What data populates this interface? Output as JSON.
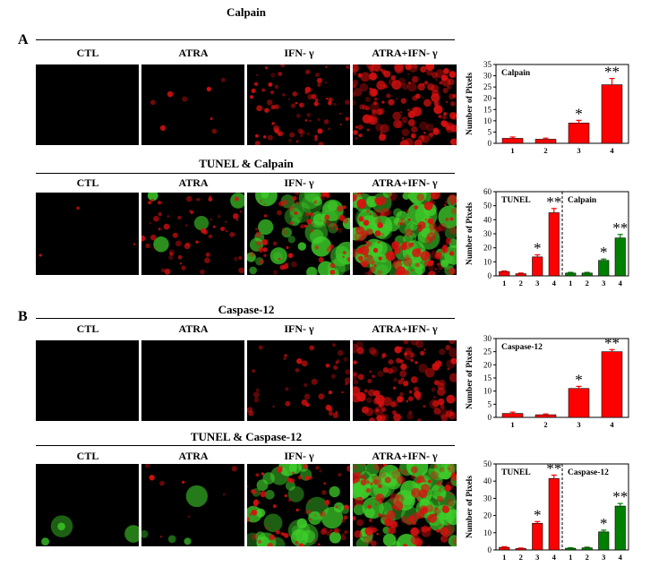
{
  "panels": [
    {
      "letter": "A",
      "row1_title": "Calpain",
      "row2_title": "TUNEL & Calpain",
      "columns": [
        "CTL",
        "ATRA",
        "IFN- γ",
        "ATRA+IFN- γ"
      ]
    },
    {
      "letter": "B",
      "row1_title": "Caspase-12",
      "row2_title": "TUNEL & Caspase-12",
      "columns": [
        "CTL",
        "ATRA",
        "IFN- γ",
        "ATRA+IFN- γ"
      ]
    }
  ],
  "colors": {
    "red": "#ff0000",
    "green": "#008000",
    "cell_red": "#d81010",
    "cell_green": "#3fcf2a"
  },
  "micrographs": [
    {
      "panel": "A",
      "row": 1,
      "red": [
        0,
        0.05,
        0.45,
        0.95
      ],
      "green": [
        0,
        0,
        0,
        0
      ]
    },
    {
      "panel": "A",
      "row": 2,
      "red": [
        0.02,
        0.35,
        0.45,
        0.8
      ],
      "green": [
        0,
        0.05,
        0.6,
        0.95
      ]
    },
    {
      "panel": "B",
      "row": 1,
      "red": [
        0,
        0,
        0.25,
        0.7
      ],
      "green": [
        0,
        0,
        0,
        0
      ]
    },
    {
      "panel": "B",
      "row": 2,
      "red": [
        0,
        0.05,
        0.45,
        0.75
      ],
      "green": [
        0.05,
        0.05,
        0.45,
        0.9
      ]
    }
  ],
  "chart_data": [
    {
      "type": "bar",
      "ylabel": "Number of Pixels",
      "ylim": [
        0,
        35
      ],
      "yticks": [
        0,
        5,
        10,
        15,
        20,
        25,
        30,
        35
      ],
      "categories": [
        "1",
        "2",
        "3",
        "4"
      ],
      "groups": [
        {
          "label": "Calpain",
          "color": "#ff0000",
          "values": [
            2.2,
            1.8,
            9.0,
            26.0
          ],
          "errors": [
            0.6,
            0.5,
            1.2,
            2.8
          ],
          "marks": [
            "",
            "",
            "*",
            "**"
          ]
        }
      ]
    },
    {
      "type": "bar",
      "ylabel": "Number of Pixels",
      "ylim": [
        0,
        60
      ],
      "yticks": [
        0,
        10,
        20,
        30,
        40,
        50,
        60
      ],
      "categories": [
        "1",
        "2",
        "3",
        "4"
      ],
      "groups": [
        {
          "label": "TUNEL",
          "color": "#ff0000",
          "values": [
            3,
            1.5,
            13.5,
            45
          ],
          "errors": [
            0.5,
            0.5,
            1.5,
            3.0
          ],
          "marks": [
            "",
            "",
            "*",
            "**"
          ]
        },
        {
          "label": "Calpain",
          "color": "#008000",
          "values": [
            2,
            2,
            11,
            27
          ],
          "errors": [
            0.5,
            0.5,
            1.0,
            2.5
          ],
          "marks": [
            "",
            "",
            "*",
            "**"
          ]
        }
      ]
    },
    {
      "type": "bar",
      "ylabel": "Number of Pixels",
      "ylim": [
        0,
        30
      ],
      "yticks": [
        0,
        5,
        10,
        15,
        20,
        25,
        30
      ],
      "categories": [
        "1",
        "2",
        "3",
        "4"
      ],
      "groups": [
        {
          "label": "Caspase-12",
          "color": "#ff0000",
          "values": [
            1.5,
            1.0,
            11.0,
            25.0
          ],
          "errors": [
            0.5,
            0.3,
            0.8,
            0.8
          ],
          "marks": [
            "",
            "",
            "*",
            "**"
          ]
        }
      ]
    },
    {
      "type": "bar",
      "ylabel": "Number of Pixels",
      "ylim": [
        0,
        50
      ],
      "yticks": [
        0,
        10,
        20,
        30,
        40,
        50
      ],
      "categories": [
        "1",
        "2",
        "3",
        "4"
      ],
      "groups": [
        {
          "label": "TUNEL",
          "color": "#ff0000",
          "values": [
            1.5,
            0.8,
            15.5,
            41.5
          ],
          "errors": [
            0.4,
            0.3,
            1.0,
            2.0
          ],
          "marks": [
            "",
            "",
            "*",
            "**"
          ]
        },
        {
          "label": "Caspase-12",
          "color": "#008000",
          "values": [
            1.0,
            1.2,
            10.5,
            25.5
          ],
          "errors": [
            0.3,
            0.4,
            1.0,
            1.5
          ],
          "marks": [
            "",
            "",
            "*",
            "**"
          ]
        }
      ]
    }
  ]
}
